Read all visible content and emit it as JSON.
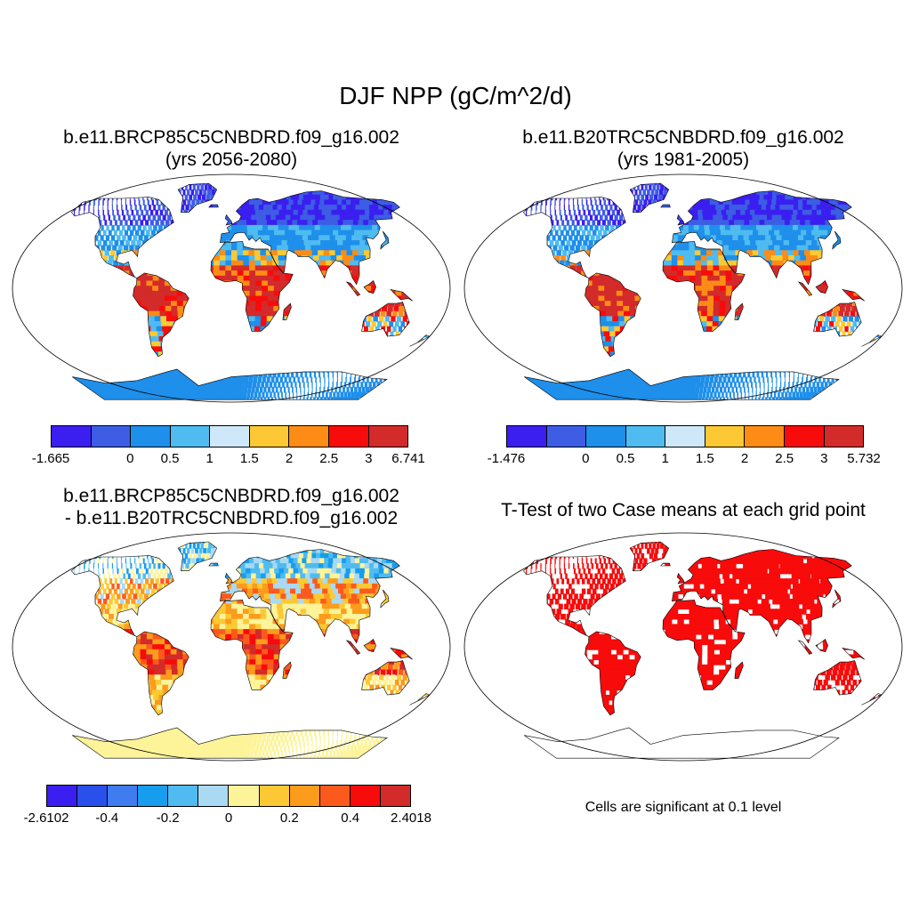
{
  "main_title": "DJF NPP (gC/m^2/d)",
  "panels": [
    {
      "id": "future",
      "title_line1": "b.e11.BRCP85C5CNBDRD.f09_g16.002",
      "title_line2": "(yrs 2056-2080)",
      "colorbar": {
        "colors": [
          "#3a1ff0",
          "#3c5de4",
          "#1e8fea",
          "#4fbbf0",
          "#cfe8f9",
          "#fcc934",
          "#fc8c16",
          "#f80b0b",
          "#d32a2a"
        ],
        "labels": [
          "-1.665",
          "0",
          "0.5",
          "1",
          "1.5",
          "2",
          "2.5",
          "3",
          "6.741"
        ]
      }
    },
    {
      "id": "present",
      "title_line1": "b.e11.B20TRC5CNBDRD.f09_g16.002",
      "title_line2": "(yrs 1981-2005)",
      "colorbar": {
        "colors": [
          "#3a1ff0",
          "#3c5de4",
          "#1e8fea",
          "#4fbbf0",
          "#cfe8f9",
          "#fcc934",
          "#fc8c16",
          "#f80b0b",
          "#d32a2a"
        ],
        "labels": [
          "-1.476",
          "0",
          "0.5",
          "1",
          "1.5",
          "2",
          "2.5",
          "3",
          "5.732"
        ]
      }
    },
    {
      "id": "difference",
      "title_line1": "b.e11.BRCP85C5CNBDRD.f09_g16.002",
      "title_line2": "- b.e11.B20TRC5CNBDRD.f09_g16.002",
      "colorbar": {
        "colors": [
          "#3a1ff0",
          "#2a50ec",
          "#3f7cef",
          "#179dee",
          "#4fbbf0",
          "#a9d9f3",
          "#fdf399",
          "#fcc934",
          "#fc9b1c",
          "#fc5a1d",
          "#f80b0b",
          "#d32a2a"
        ],
        "labels": [
          "-2.6102",
          "-0.4",
          "-0.2",
          "0",
          "0.2",
          "0.4",
          "2.4018"
        ]
      }
    },
    {
      "id": "ttest",
      "title_line1": "T-Test of two Case means at each grid point",
      "title_line2": "",
      "note": "Cells are significant at 0.1 level",
      "significant_color": "#f80b0b"
    }
  ]
}
